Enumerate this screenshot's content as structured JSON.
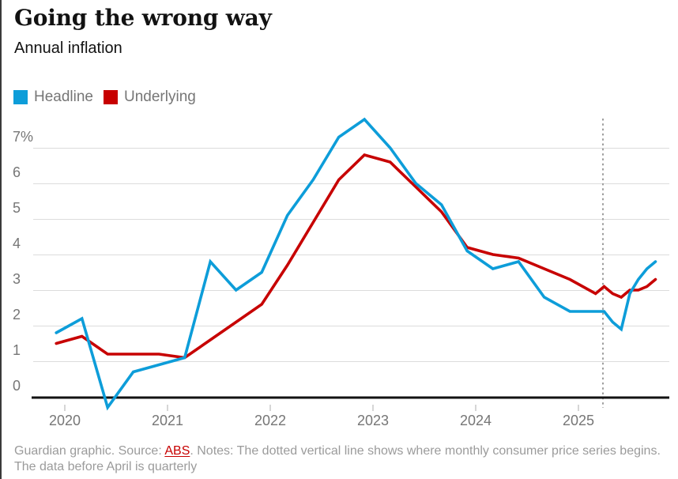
{
  "header": {
    "title": "Going the wrong way",
    "subtitle": "Annual inflation"
  },
  "legend": {
    "items": [
      {
        "label": "Headline",
        "color": "#0d9dd9"
      },
      {
        "label": "Underlying",
        "color": "#c70000"
      }
    ]
  },
  "chart_data": {
    "type": "line",
    "title": "Going the wrong way",
    "subtitle": "Annual inflation",
    "ylabel": "Annual inflation (%)",
    "grid": "horizontal",
    "legend_position": "top-left",
    "x": [
      "Dec 2019",
      "Mar 2020",
      "Jun 2020",
      "Sep 2020",
      "Dec 2020",
      "Mar 2021",
      "Jun 2021",
      "Sep 2021",
      "Dec 2021",
      "Mar 2022",
      "Jun 2022",
      "Sep 2022",
      "Dec 2022",
      "Mar 2023",
      "Jun 2023",
      "Sep 2023",
      "Dec 2023",
      "Mar 2024",
      "Jun 2024",
      "Sep 2024",
      "Dec 2024",
      "Mar 2025",
      "Apr 2025",
      "May 2025",
      "Jun 2025",
      "Jul 2025",
      "Aug 2025",
      "Sep 2025",
      "Oct 2025"
    ],
    "t_months_from_jan2020": [
      -1,
      2,
      5,
      8,
      11,
      14,
      17,
      20,
      23,
      26,
      29,
      32,
      35,
      38,
      41,
      44,
      47,
      50,
      53,
      56,
      59,
      62,
      63,
      64,
      65,
      66,
      67,
      68,
      69
    ],
    "series": [
      {
        "name": "Headline",
        "color": "#0d9dd9",
        "values": [
          1.8,
          2.2,
          -0.3,
          0.7,
          0.9,
          1.1,
          3.8,
          3.0,
          3.5,
          5.1,
          6.1,
          7.3,
          7.8,
          7.0,
          6.0,
          5.4,
          4.1,
          3.6,
          3.8,
          2.8,
          2.4,
          2.4,
          2.4,
          2.1,
          1.9,
          2.9,
          3.3,
          3.6,
          3.8
        ]
      },
      {
        "name": "Underlying",
        "color": "#c70000",
        "values": [
          1.5,
          1.7,
          1.2,
          1.2,
          1.2,
          1.1,
          1.6,
          2.1,
          2.6,
          3.7,
          4.9,
          6.1,
          6.8,
          6.6,
          5.9,
          5.2,
          4.2,
          4.0,
          3.9,
          3.6,
          3.3,
          2.9,
          3.1,
          2.9,
          2.8,
          3.0,
          3.0,
          3.1,
          3.3
        ]
      }
    ],
    "y_axis": {
      "range": [
        -0.5,
        7.9
      ],
      "ticks": [
        {
          "label": "7%",
          "value": 7
        },
        {
          "label": "6",
          "value": 6
        },
        {
          "label": "5",
          "value": 5
        },
        {
          "label": "4",
          "value": 4
        },
        {
          "label": "3",
          "value": 3
        },
        {
          "label": "2",
          "value": 2
        },
        {
          "label": "1",
          "value": 1
        },
        {
          "label": "0",
          "value": 0
        }
      ]
    },
    "x_axis": {
      "ticks": [
        {
          "label": "2020",
          "t": 0
        },
        {
          "label": "2021",
          "t": 12
        },
        {
          "label": "2022",
          "t": 24
        },
        {
          "label": "2023",
          "t": 36
        },
        {
          "label": "2024",
          "t": 48
        },
        {
          "label": "2025",
          "t": 60
        }
      ]
    },
    "annotations": {
      "monthly_series_divider": {
        "t": 63,
        "date": "Apr 2025",
        "style": "dotted-vertical-line"
      }
    }
  },
  "footer": {
    "prefix": "Guardian graphic. Source: ",
    "source_label": "ABS",
    "notes": ". Notes: The dotted vertical line shows where monthly consumer price series begins.",
    "notes_line2": "The data before April is quarterly"
  },
  "colors": {
    "headline": "#0d9dd9",
    "underlying": "#c70000",
    "title_text": "#121212",
    "axis_text": "#767676",
    "footer_text": "#9b9b9b",
    "gridline": "#dcdcdc",
    "baseline": "#121212",
    "divider": "#9e9e9e",
    "tick_mark": "#c8c8c8"
  }
}
